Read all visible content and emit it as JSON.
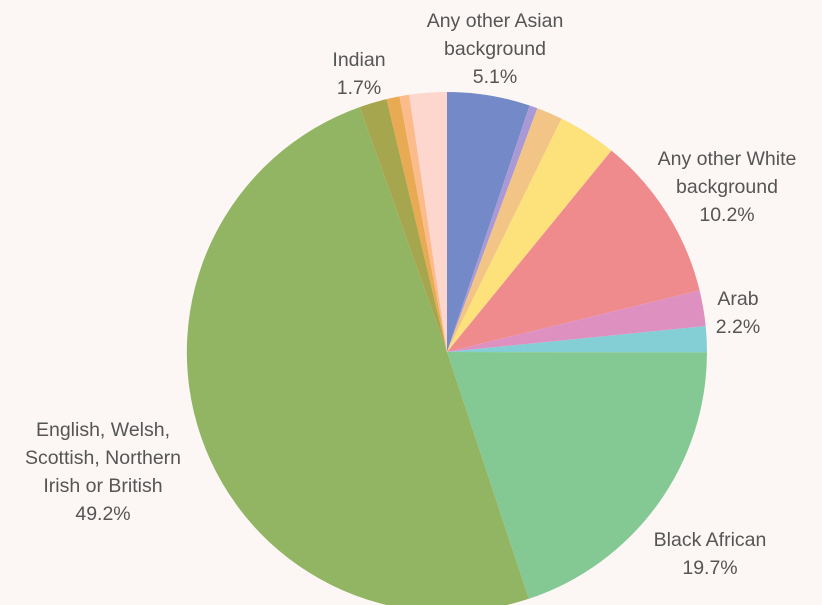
{
  "chart_data": {
    "type": "pie",
    "start_angle_deg": 0,
    "direction": "clockwise",
    "slices": [
      {
        "label": "Any other Asian background",
        "value": 5.1,
        "color": "#7489c7",
        "lines": [
          "Any other Asian",
          "background",
          "5.1%"
        ]
      },
      {
        "label": "",
        "value": 0.5,
        "color": "#a99ad6"
      },
      {
        "label": "",
        "value": 1.6,
        "color": "#f2c586"
      },
      {
        "label": "",
        "value": 3.6,
        "color": "#fde27c"
      },
      {
        "label": "Any other White background",
        "value": 10.2,
        "color": "#ef8a8d",
        "lines": [
          "Any other White",
          "background",
          "10.2%"
        ]
      },
      {
        "label": "Arab",
        "value": 2.2,
        "color": "#de91c1",
        "lines": [
          "Arab",
          "2.2%"
        ]
      },
      {
        "label": "",
        "value": 1.6,
        "color": "#84cfd5"
      },
      {
        "label": "Black African",
        "value": 19.7,
        "color": "#84c993",
        "lines": [
          "Black African",
          "19.7%"
        ]
      },
      {
        "label": "English, Welsh, Scottish, Northern Irish or British",
        "value": 49.2,
        "color": "#92b563",
        "lines": [
          "English, Welsh,",
          "Scottish, Northern",
          "Irish or British",
          "49.2%"
        ]
      },
      {
        "label": "Indian",
        "value": 1.7,
        "color": "#a6a64e",
        "lines": [
          "Indian",
          "1.7%"
        ]
      },
      {
        "label": "",
        "value": 0.8,
        "color": "#e8aa52"
      },
      {
        "label": "",
        "value": 0.6,
        "color": "#fcbb8a"
      },
      {
        "label": "",
        "value": 2.3,
        "color": "#fdd6cd"
      }
    ]
  }
}
